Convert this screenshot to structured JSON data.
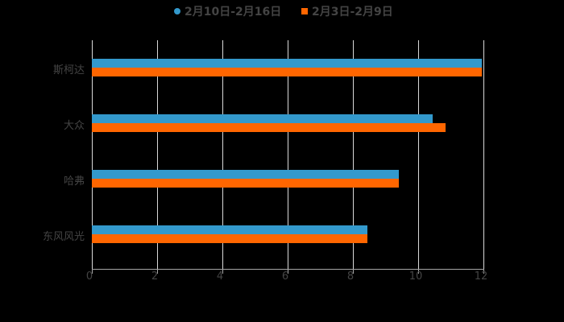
{
  "chart_data": {
    "type": "bar",
    "orientation": "horizontal",
    "title": "",
    "xlabel": "",
    "ylabel": "",
    "categories": [
      "斯柯达",
      "大众",
      "哈弗",
      "东风风光"
    ],
    "series": [
      {
        "name": "2月10日-2月16日",
        "color": "#3399cc",
        "values": [
          11.95,
          10.45,
          9.4,
          8.45
        ]
      },
      {
        "name": "2月3日-2月9日",
        "color": "#ff6600",
        "values": [
          11.95,
          10.85,
          9.4,
          8.45
        ]
      }
    ],
    "xlim": [
      0,
      12
    ],
    "xticks": [
      "0",
      "2",
      "4",
      "6",
      "8",
      "10",
      "12"
    ],
    "grid": true,
    "legend_position": "top"
  },
  "legend": [
    {
      "label": "2月10日-2月16日",
      "color": "#3399cc",
      "shape": "circle"
    },
    {
      "label": "2月3日-2月9日",
      "color": "#ff6600",
      "shape": "square"
    }
  ]
}
